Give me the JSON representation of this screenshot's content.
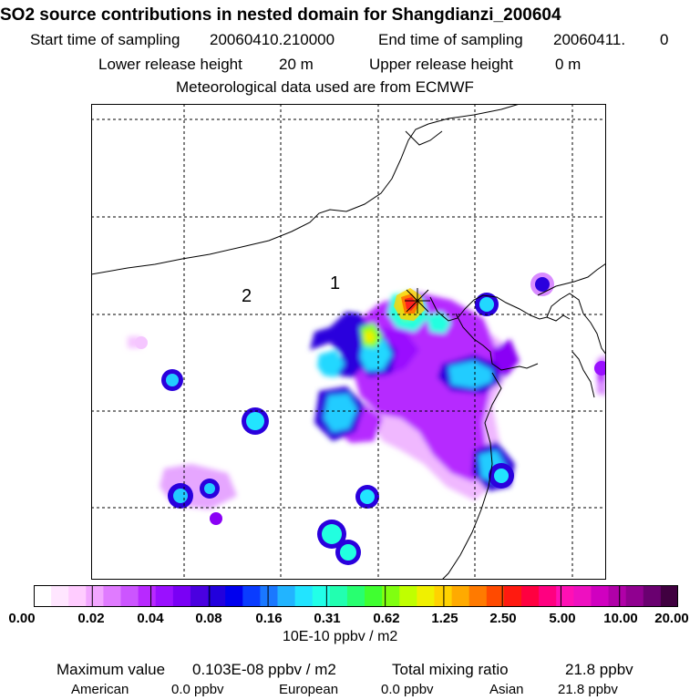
{
  "title": "SO2 source contributions in nested domain for Shangdianzi_200604",
  "header": {
    "start_label": "Start time of sampling",
    "start_value": "20060410.210000",
    "end_label": "End time of sampling",
    "end_value": "20060411.",
    "end_extra": "0",
    "lower_label": "Lower release height",
    "lower_value": "20 m",
    "upper_label": "Upper release height",
    "upper_value": "0 m",
    "met": "Meteorological data used are from ECMWF"
  },
  "map": {
    "region_labels": [
      "1",
      "2"
    ],
    "station_marker": "receptor-star"
  },
  "legend": {
    "labels": [
      "0.00",
      "0.02",
      "0.04",
      "0.08",
      "0.16",
      "0.31",
      "0.62",
      "1.25",
      "2.50",
      "5.00",
      "10.00",
      "20.00"
    ],
    "units": "10E-10 ppbv / m2",
    "colors": [
      "#ffffff",
      "#ffe6ff",
      "#ffccff",
      "#f2a6ff",
      "#e07bff",
      "#cc55ff",
      "#b829ff",
      "#9a10ff",
      "#7a00f5",
      "#4a00e0",
      "#2200dd",
      "#0000ee",
      "#0a3cff",
      "#1a78ff",
      "#22b4ff",
      "#22e4ff",
      "#22ffe8",
      "#22ffb0",
      "#28ff70",
      "#40ff30",
      "#80ff10",
      "#c0ff00",
      "#f0f000",
      "#ffd200",
      "#ffaa00",
      "#ff7a00",
      "#ff4a00",
      "#ff1a10",
      "#ff0040",
      "#ff0080",
      "#ff10b4",
      "#ee10c0",
      "#d000c0",
      "#b000a8",
      "#900090",
      "#6a0070",
      "#400040"
    ]
  },
  "stats": {
    "max_label": "Maximum value",
    "max_value": "0.103E-08 ppbv / m2",
    "total_label": "Total mixing ratio",
    "total_value": "21.8 ppbv",
    "american_label": "American",
    "american_value": "0.0 ppbv",
    "european_label": "European",
    "european_value": "0.0 ppbv",
    "asian_label": "Asian",
    "asian_value": "21.8 ppbv"
  }
}
